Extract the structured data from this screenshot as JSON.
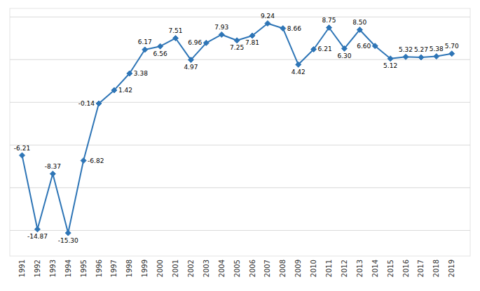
{
  "chart_data": {
    "type": "line",
    "x": [
      1991,
      1992,
      1993,
      1994,
      1995,
      1996,
      1997,
      1998,
      1999,
      2000,
      2001,
      2002,
      2003,
      2004,
      2005,
      2006,
      2007,
      2008,
      2009,
      2010,
      2011,
      2012,
      2013,
      2014,
      2015,
      2016,
      2017,
      2018,
      2019
    ],
    "values": [
      -6.21,
      -14.87,
      -8.37,
      -15.3,
      -6.82,
      -0.14,
      1.42,
      3.38,
      6.17,
      6.56,
      7.51,
      4.97,
      6.96,
      7.93,
      7.25,
      7.81,
      9.24,
      8.66,
      4.42,
      6.21,
      8.75,
      6.3,
      8.5,
      6.6,
      5.12,
      5.32,
      5.27,
      5.38,
      5.7
    ],
    "value_labels": [
      "-6.21",
      "-14.87",
      "-8.37",
      "-15.30",
      "-6.82",
      "-0.14",
      "1.42",
      "3.38",
      "6.17",
      "6.56",
      "7.51",
      "4.97",
      "6.96",
      "7.93",
      "7.25",
      "7.81",
      "9.24",
      "8.66",
      "4.42",
      "6.21",
      "8.75",
      "6.30",
      "8.50",
      "6.60",
      "5.12",
      "5.32",
      "5.27",
      "5.38",
      "5.70"
    ],
    "color": "#2E75B6",
    "marker": "diamond",
    "xlim": [
      1990.2,
      2020.2
    ],
    "xticks": [
      1991,
      1992,
      1993,
      1994,
      1995,
      1996,
      1997,
      1998,
      1999,
      2000,
      2001,
      2002,
      2003,
      2004,
      2005,
      2006,
      2007,
      2008,
      2009,
      2010,
      2011,
      2012,
      2013,
      2014,
      2015,
      2016,
      2017,
      2018,
      2019
    ],
    "ylim": [
      -18,
      11
    ],
    "yticks": [
      -15,
      -10,
      -5,
      0,
      5,
      10
    ],
    "grid": true,
    "data_labels": true,
    "tick_labels": "x"
  }
}
